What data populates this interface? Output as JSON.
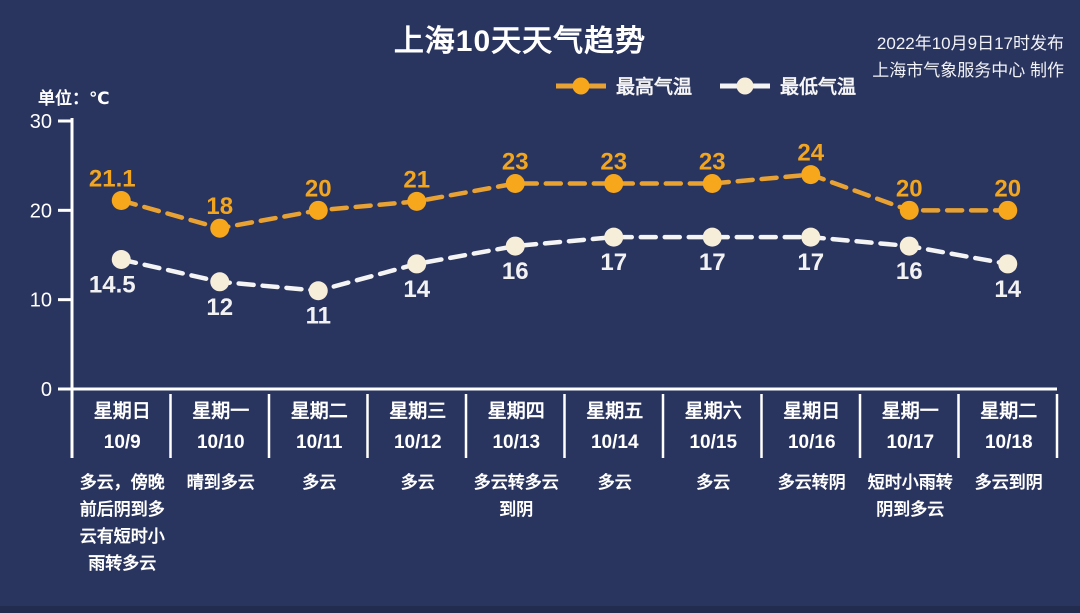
{
  "header": {
    "title": "上海10天天气趋势",
    "publish_line1": "2022年10月9日17时发布",
    "publish_line2": "上海市气象服务中心 制作",
    "unit_label": "单位：℃"
  },
  "legend": {
    "high_label": "最高气温",
    "low_label": "最低气温"
  },
  "colors": {
    "background": "#2A355F",
    "bottom_strip": "#222C4E",
    "axis": "#FFFFFF",
    "text": "#FFFFFF",
    "high_line": "#E8A233",
    "high_dot": "#F6A71C",
    "high_label": "#F2A51F",
    "low_line": "#F4F4F4",
    "low_dot": "#F7EEDA",
    "low_label": "#F2F2F2"
  },
  "chart_data": {
    "type": "line",
    "title": "上海10天天气趋势",
    "unit": "℃",
    "ylim": [
      0,
      30
    ],
    "y_ticks": [
      30,
      20,
      10,
      0
    ],
    "grid": false,
    "legend_position": "top",
    "categories_day": [
      "星期日",
      "星期一",
      "星期二",
      "星期三",
      "星期四",
      "星期五",
      "星期六",
      "星期日",
      "星期一",
      "星期二"
    ],
    "categories_date": [
      "10/9",
      "10/10",
      "10/11",
      "10/12",
      "10/13",
      "10/14",
      "10/15",
      "10/16",
      "10/17",
      "10/18"
    ],
    "weather": [
      "多云，傍晚前后阴到多云有短时小雨转多云",
      "晴到多云",
      "多云",
      "多云",
      "多云转多云到阴",
      "多云",
      "多云",
      "多云转阴",
      "短时小雨转阴到多云",
      "多云到阴"
    ],
    "series": [
      {
        "name": "最高气温",
        "values": [
          21.1,
          18,
          20,
          21,
          23,
          23,
          23,
          24,
          20,
          20
        ],
        "label_side": "above"
      },
      {
        "name": "最低气温",
        "values": [
          14.5,
          12,
          11,
          14,
          16,
          17,
          17,
          17,
          16,
          14
        ],
        "label_side": "below"
      }
    ]
  }
}
